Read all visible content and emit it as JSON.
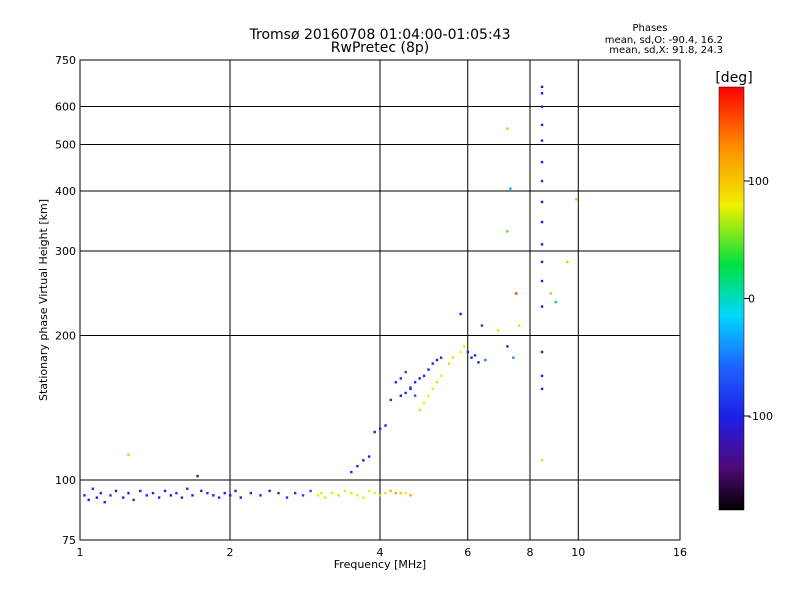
{
  "chart_data": {
    "type": "scatter",
    "title": "Tromsø 20160708 01:04:00-01:05:43",
    "subtitle": "RwPretec (8p)",
    "xlabel": "Frequency [MHz]",
    "ylabel": "Stationary phase Virtual Height [km]",
    "x_scale": "log2",
    "y_scale": "log",
    "xlim": [
      1,
      16
    ],
    "ylim": [
      75,
      750
    ],
    "x_ticks": [
      1,
      2,
      4,
      6,
      8,
      10,
      16
    ],
    "x_tick_labels": [
      "1",
      "2",
      "4",
      "6",
      "8",
      "10",
      "16"
    ],
    "y_ticks": [
      75,
      100,
      200,
      300,
      400,
      500,
      600,
      750
    ],
    "y_tick_labels": [
      "75",
      "100",
      "200",
      "300",
      "400",
      "500",
      "600",
      "750"
    ],
    "grid": true,
    "phase_stats": {
      "heading": "Phases",
      "line_o": "mean, sd,O: -90.4, 16.2",
      "line_x": "mean, sd,X:  91.8, 24.3"
    },
    "colorbar": {
      "label": "[deg]",
      "min": -180,
      "max": 180,
      "ticks": [
        100,
        0,
        -100
      ],
      "tick_labels": [
        "100",
        "0",
        "-100"
      ]
    },
    "series": [
      {
        "points": [
          [
            1.02,
            93,
            -95
          ],
          [
            1.04,
            91,
            -100
          ],
          [
            1.06,
            96,
            -90
          ],
          [
            1.08,
            92,
            -105
          ],
          [
            1.1,
            94,
            -95
          ],
          [
            1.12,
            90,
            -100
          ],
          [
            1.15,
            93,
            -90
          ],
          [
            1.18,
            95,
            -100
          ],
          [
            1.22,
            92,
            -95
          ],
          [
            1.25,
            94,
            -110
          ],
          [
            1.28,
            91,
            -95
          ],
          [
            1.32,
            95,
            -100
          ],
          [
            1.36,
            93,
            -90
          ],
          [
            1.4,
            94,
            -95
          ],
          [
            1.44,
            92,
            -105
          ],
          [
            1.48,
            95,
            -100
          ],
          [
            1.52,
            93,
            -95
          ],
          [
            1.56,
            94,
            -90
          ],
          [
            1.6,
            92,
            -100
          ],
          [
            1.64,
            96,
            -95
          ],
          [
            1.68,
            93,
            -105
          ],
          [
            1.72,
            102,
            -105
          ],
          [
            1.75,
            95,
            -100
          ],
          [
            1.8,
            94,
            -95
          ],
          [
            1.85,
            93,
            -100
          ],
          [
            1.9,
            92,
            -90
          ],
          [
            1.95,
            94,
            -95
          ],
          [
            2.0,
            93,
            -100
          ],
          [
            2.05,
            95,
            -95
          ],
          [
            2.1,
            92,
            -100
          ],
          [
            2.2,
            94,
            -95
          ],
          [
            2.3,
            93,
            -90
          ],
          [
            2.4,
            95,
            -100
          ],
          [
            2.5,
            94,
            -95
          ],
          [
            2.6,
            92,
            -85
          ],
          [
            2.7,
            94,
            -90
          ],
          [
            2.8,
            93,
            -80
          ],
          [
            2.9,
            95,
            -70
          ],
          [
            3.0,
            93,
            80
          ],
          [
            3.05,
            94,
            75
          ],
          [
            3.1,
            92,
            85
          ],
          [
            3.2,
            94,
            80
          ],
          [
            3.3,
            93,
            70
          ],
          [
            3.4,
            95,
            80
          ],
          [
            3.5,
            94,
            75
          ],
          [
            3.6,
            93,
            85
          ],
          [
            3.7,
            92,
            80
          ],
          [
            3.8,
            95,
            75
          ],
          [
            3.9,
            94,
            80
          ],
          [
            4.0,
            93,
            70
          ],
          [
            4.1,
            94,
            90
          ],
          [
            4.2,
            95,
            110
          ],
          [
            4.3,
            94,
            120
          ],
          [
            4.4,
            94,
            100
          ],
          [
            4.5,
            94,
            80
          ],
          [
            4.6,
            93,
            115
          ],
          [
            3.5,
            104,
            -100
          ],
          [
            3.6,
            107,
            -95
          ],
          [
            3.7,
            110,
            -100
          ],
          [
            3.8,
            112,
            -95
          ],
          [
            3.9,
            126,
            -100
          ],
          [
            4.0,
            128,
            -95
          ],
          [
            4.1,
            130,
            -100
          ],
          [
            4.2,
            147,
            -95
          ],
          [
            4.4,
            150,
            -100
          ],
          [
            4.5,
            152,
            -95
          ],
          [
            4.6,
            155,
            -100
          ],
          [
            4.7,
            160,
            -95
          ],
          [
            4.8,
            163,
            -100
          ],
          [
            4.9,
            165,
            -95
          ],
          [
            5.0,
            170,
            -100
          ],
          [
            5.1,
            175,
            -95
          ],
          [
            5.2,
            178,
            -100
          ],
          [
            5.3,
            180,
            -95
          ],
          [
            4.3,
            160,
            -90
          ],
          [
            4.4,
            163,
            -95
          ],
          [
            4.5,
            168,
            -80
          ],
          [
            4.6,
            156,
            -85
          ],
          [
            4.7,
            150,
            -70
          ],
          [
            4.8,
            140,
            70
          ],
          [
            4.9,
            145,
            80
          ],
          [
            5.0,
            150,
            75
          ],
          [
            5.1,
            155,
            85
          ],
          [
            5.2,
            160,
            90
          ],
          [
            5.3,
            165,
            80
          ],
          [
            5.5,
            175,
            90
          ],
          [
            5.6,
            180,
            85
          ],
          [
            5.8,
            185,
            80
          ],
          [
            5.9,
            190,
            90
          ],
          [
            6.0,
            185,
            -100
          ],
          [
            6.1,
            180,
            -95
          ],
          [
            6.2,
            182,
            -90
          ],
          [
            6.3,
            176,
            -100
          ],
          [
            6.5,
            178,
            -50
          ],
          [
            5.8,
            222,
            -100
          ],
          [
            6.4,
            210,
            -85
          ],
          [
            6.9,
            205,
            85
          ],
          [
            7.2,
            190,
            -95
          ],
          [
            7.4,
            180,
            -40
          ],
          [
            7.5,
            245,
            160
          ],
          [
            7.6,
            210,
            90
          ],
          [
            7.2,
            540,
            105
          ],
          [
            7.2,
            330,
            45
          ],
          [
            7.3,
            405,
            -30
          ],
          [
            8.45,
            110,
            90
          ],
          [
            8.45,
            155,
            -100
          ],
          [
            8.45,
            165,
            -105
          ],
          [
            8.45,
            185,
            -110
          ],
          [
            8.45,
            230,
            -100
          ],
          [
            8.45,
            260,
            -95
          ],
          [
            8.45,
            285,
            -105
          ],
          [
            8.45,
            310,
            -110
          ],
          [
            8.45,
            345,
            -100
          ],
          [
            8.45,
            380,
            -105
          ],
          [
            8.45,
            420,
            -95
          ],
          [
            8.45,
            460,
            -110
          ],
          [
            8.45,
            510,
            -100
          ],
          [
            8.45,
            550,
            -105
          ],
          [
            8.45,
            600,
            -95
          ],
          [
            8.45,
            640,
            -110
          ],
          [
            8.45,
            660,
            -100
          ],
          [
            8.8,
            245,
            60
          ],
          [
            9.0,
            235,
            20
          ],
          [
            9.5,
            285,
            100
          ],
          [
            9.9,
            385,
            100
          ],
          [
            1.25,
            113,
            100
          ]
        ]
      }
    ]
  }
}
